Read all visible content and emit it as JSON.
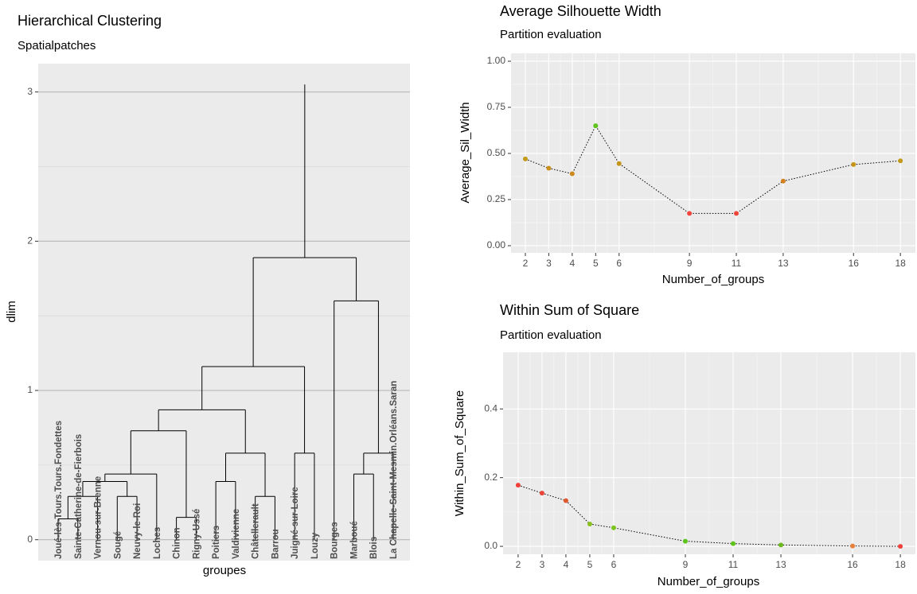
{
  "chart_data": [
    {
      "type": "dendrogram",
      "title": "Hierarchical Clustering",
      "subtitle": "Spatialpatches",
      "x_label": "groupes",
      "y_label": "dlim",
      "leaves": [
        "Joué-lès-Tours.Tours.Fondettes",
        "Sainte-Catherine-de-Fierbois",
        "Vernou-sur-Brenne",
        "Sougé",
        "Neuvy-le-Roi",
        "Loches",
        "Chinon",
        "Rigny-Ussé",
        "Poitiers",
        "Valdivienne",
        "Châtellerault",
        "Barrou",
        "Juigné-sur-Loire",
        "Louzy",
        "Bourges",
        "Marboué",
        "Blois",
        "La Chapelle-Saint-Mesmin.Orléans.Saran"
      ],
      "merges": [
        {
          "pair": [
            0,
            1
          ],
          "height": 0.14
        },
        {
          "pair": [
            18,
            2
          ],
          "height": 0.29
        },
        {
          "pair": [
            3,
            4
          ],
          "height": 0.29
        },
        {
          "pair": [
            19,
            20
          ],
          "height": 0.39
        },
        {
          "pair": [
            21,
            5
          ],
          "height": 0.44
        },
        {
          "pair": [
            6,
            7
          ],
          "height": 0.15
        },
        {
          "pair": [
            22,
            23
          ],
          "height": 0.73
        },
        {
          "pair": [
            8,
            9
          ],
          "height": 0.39
        },
        {
          "pair": [
            10,
            11
          ],
          "height": 0.29
        },
        {
          "pair": [
            25,
            26
          ],
          "height": 0.58
        },
        {
          "pair": [
            24,
            27
          ],
          "height": 0.87
        },
        {
          "pair": [
            12,
            13
          ],
          "height": 0.58
        },
        {
          "pair": [
            28,
            29
          ],
          "height": 1.16
        },
        {
          "pair": [
            15,
            16
          ],
          "height": 0.44
        },
        {
          "pair": [
            31,
            17
          ],
          "height": 0.58
        },
        {
          "pair": [
            14,
            32
          ],
          "height": 1.6
        },
        {
          "pair": [
            30,
            33
          ],
          "height": 1.89
        }
      ],
      "root_height": 3.05,
      "color": "#000000",
      "ylim": [
        -0.14,
        3.19
      ],
      "yticks": [
        0,
        1,
        2,
        3
      ],
      "grid": true
    },
    {
      "type": "line",
      "title": "Average Silhouette Width",
      "subtitle": "Partition evaluation",
      "x_label": "Number_of_groups",
      "y_label": "Average_Sil_Width",
      "x": [
        2,
        3,
        4,
        5,
        6,
        9,
        11,
        13,
        16,
        18
      ],
      "values": [
        0.47,
        0.42,
        0.39,
        0.65,
        0.445,
        0.175,
        0.175,
        0.35,
        0.44,
        0.46
      ],
      "colors": [
        "#c49a1a",
        "#c9901c",
        "#cc8a1c",
        "#5cc41a",
        "#c6961a",
        "#f0453a",
        "#f0453a",
        "#d3801e",
        "#c6961a",
        "#c49a1a"
      ],
      "xlim": [
        1.39,
        18.64
      ],
      "ylim": [
        -0.039,
        1.043
      ],
      "xticks": [
        2,
        3,
        4,
        5,
        6,
        9,
        11,
        13,
        16,
        18
      ],
      "yticks": [
        {
          "value": 0,
          "label": "0.00"
        },
        {
          "value": 0.25,
          "label": "0.25"
        },
        {
          "value": 0.5,
          "label": "0.50"
        },
        {
          "value": 0.75,
          "label": "0.75"
        },
        {
          "value": 1,
          "label": "1.00"
        }
      ],
      "grid": true
    },
    {
      "type": "line",
      "title": "Within Sum of Square",
      "subtitle": "Partition evaluation",
      "x_label": "Number_of_groups",
      "y_label": "Within_Sum_of_Square",
      "x": [
        2,
        3,
        4,
        5,
        6,
        9,
        11,
        13,
        16,
        18
      ],
      "values": [
        0.178,
        0.155,
        0.133,
        0.065,
        0.054,
        0.015,
        0.008,
        0.004,
        0.001,
        0
      ],
      "colors": [
        "#f0403a",
        "#e8463a",
        "#e0582e",
        "#88c020",
        "#7cc41e",
        "#5cc41a",
        "#5cc41a",
        "#6cb81e",
        "#e8803a",
        "#f0403a"
      ],
      "xlim": [
        1.37,
        18.63
      ],
      "ylim": [
        -0.023,
        0.565
      ],
      "xticks": [
        2,
        3,
        4,
        5,
        6,
        9,
        11,
        13,
        16,
        18
      ],
      "yticks": [
        {
          "value": 0,
          "label": "0.0"
        },
        {
          "value": 0.2,
          "label": "0.2"
        },
        {
          "value": 0.4,
          "label": "0.4"
        }
      ],
      "grid": true
    }
  ]
}
